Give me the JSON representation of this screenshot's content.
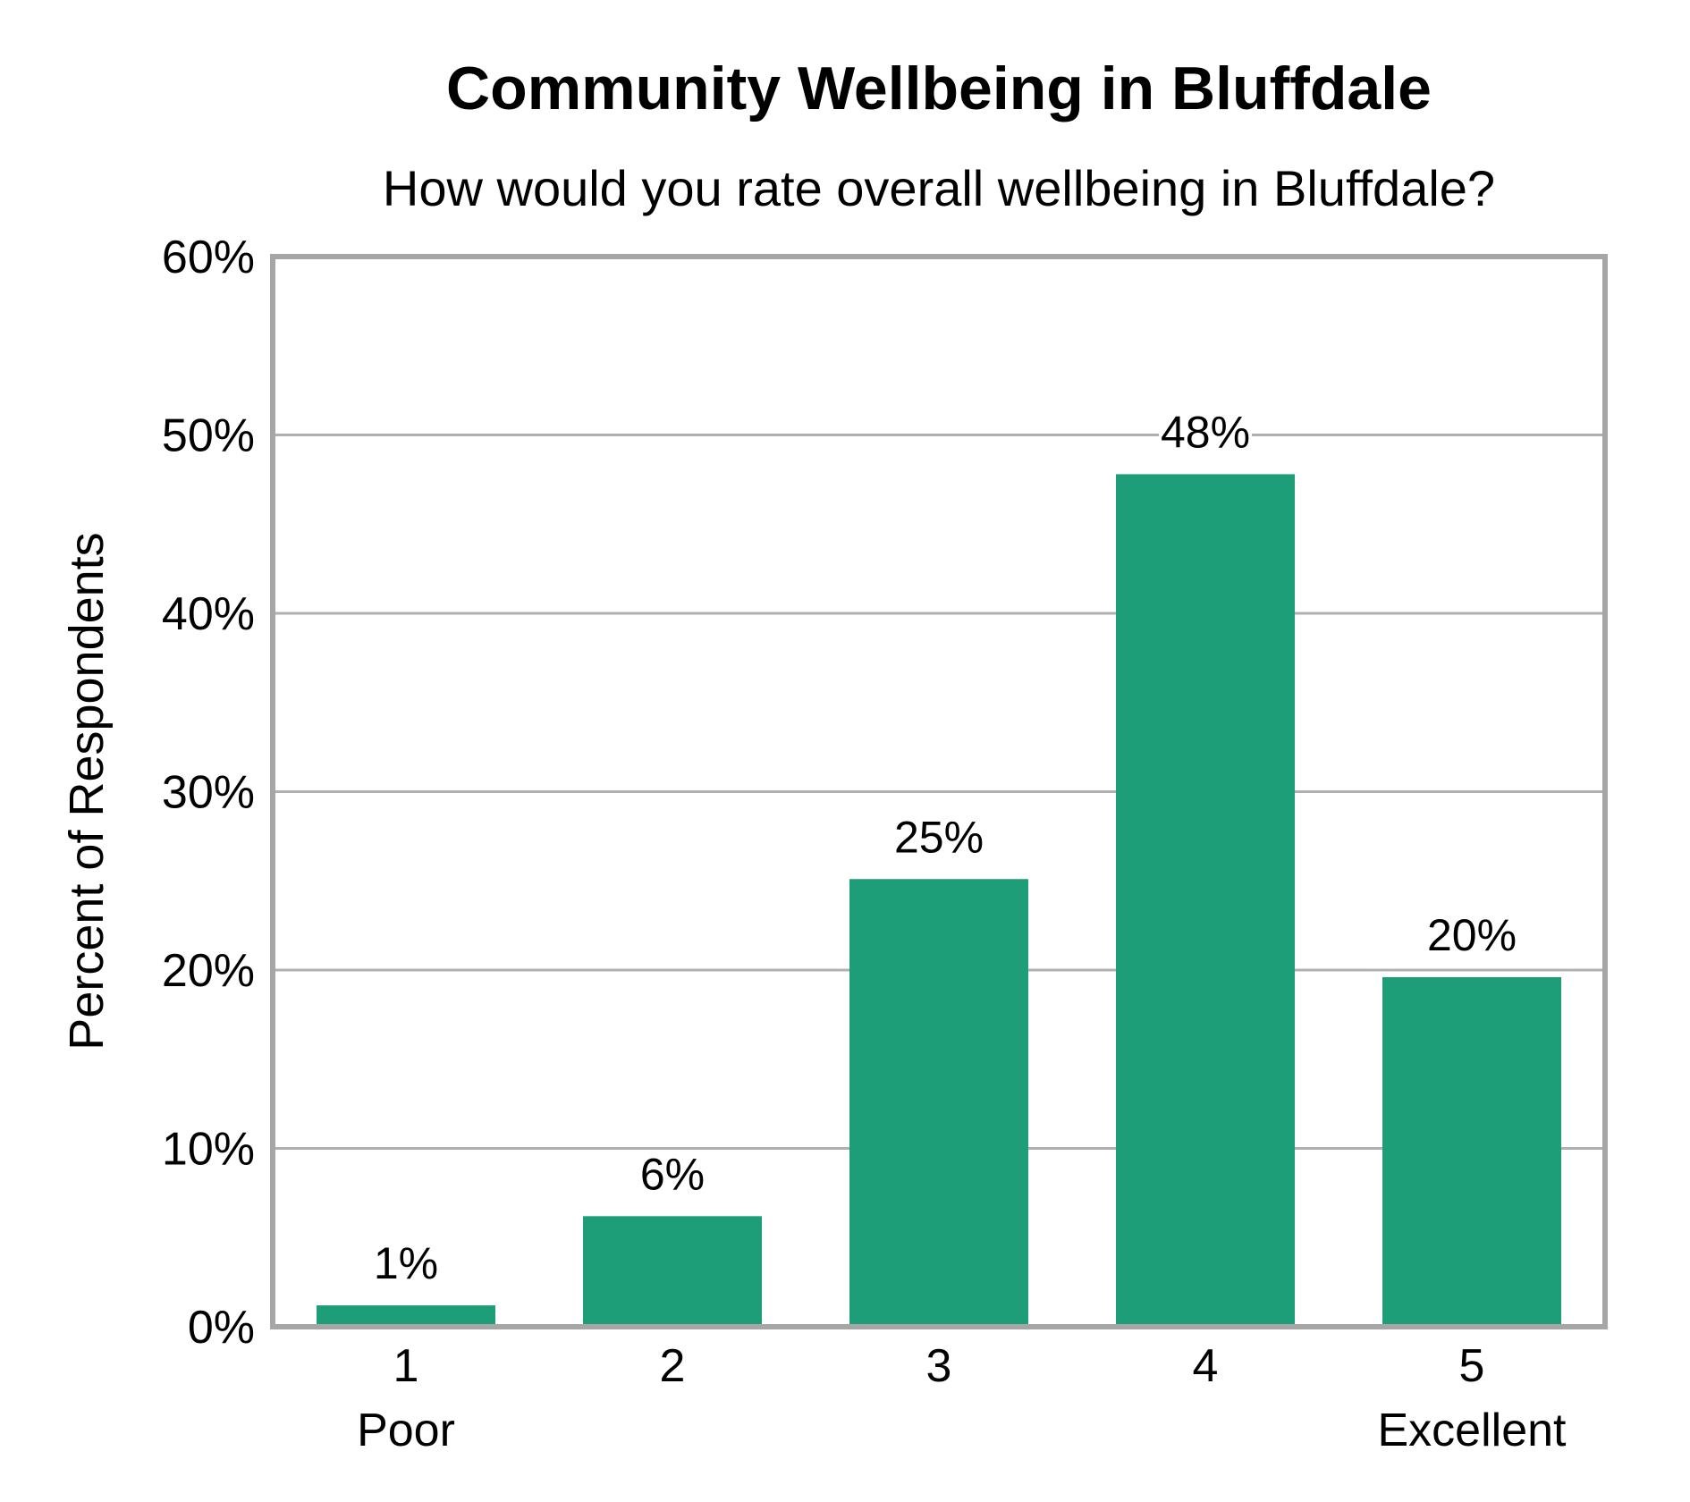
{
  "chart_data": {
    "type": "bar",
    "title": "Community Wellbeing in Bluffdale",
    "subtitle": "How would you rate overall wellbeing in Bluffdale?",
    "xlabel": "",
    "ylabel": "Percent of Respondents",
    "categories": [
      "1",
      "2",
      "3",
      "4",
      "5"
    ],
    "category_sublabels": [
      "Poor",
      "",
      "",
      "",
      "Excellent"
    ],
    "values": [
      1,
      6,
      25,
      48,
      20
    ],
    "plotted_values": [
      1.2,
      6.2,
      25.1,
      47.8,
      19.6
    ],
    "data_labels": [
      "1%",
      "6%",
      "25%",
      "48%",
      "20%"
    ],
    "ylim": [
      0,
      60
    ],
    "yticks": [
      0,
      10,
      20,
      30,
      40,
      50,
      60
    ],
    "ytick_labels": [
      "0%",
      "10%",
      "20%",
      "30%",
      "40%",
      "50%",
      "60%"
    ],
    "grid": true,
    "legend": "none",
    "colors": {
      "bar": "#1e9e78",
      "grid": "#b0b0b0",
      "frame": "#a6a6a6"
    }
  }
}
